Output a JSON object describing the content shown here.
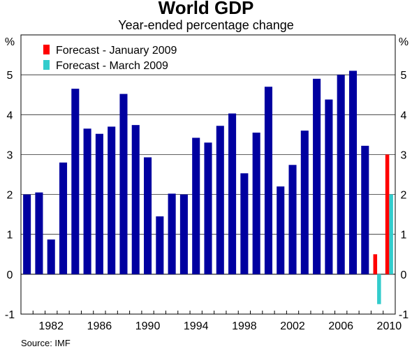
{
  "chart_data": {
    "type": "bar",
    "title": "World GDP",
    "subtitle": "Year-ended percentage change",
    "ylabel_left": "%",
    "ylabel_right": "%",
    "ylim": [
      -1,
      6
    ],
    "yticks": [
      -1,
      0,
      1,
      2,
      3,
      4,
      5
    ],
    "xrange": [
      1980,
      2011
    ],
    "xtick_labels": [
      "1982",
      "1986",
      "1990",
      "1994",
      "1998",
      "2002",
      "2006",
      "2010"
    ],
    "grid": true,
    "legend_position": "top-left",
    "source": "Source: IMF",
    "series": [
      {
        "name": "",
        "color": "#0000A0",
        "x": [
          1980,
          1981,
          1982,
          1983,
          1984,
          1985,
          1986,
          1987,
          1988,
          1989,
          1990,
          1991,
          1992,
          1993,
          1994,
          1995,
          1996,
          1997,
          1998,
          1999,
          2000,
          2001,
          2002,
          2003,
          2004,
          2005,
          2006,
          2007,
          2008
        ],
        "values": [
          2.0,
          2.05,
          0.87,
          2.8,
          4.65,
          3.65,
          3.52,
          3.7,
          4.52,
          3.74,
          2.93,
          1.45,
          2.02,
          2.0,
          3.42,
          3.3,
          3.72,
          4.03,
          2.53,
          3.55,
          4.7,
          2.2,
          2.74,
          3.6,
          4.9,
          4.38,
          5.0,
          5.1,
          3.22
        ]
      },
      {
        "name": "Forecast - January 2009",
        "color": "#FF0000",
        "x": [
          2009,
          2010
        ],
        "values": [
          0.5,
          3.0
        ]
      },
      {
        "name": "Forecast - March 2009",
        "color": "#33CCCC",
        "x": [
          2009,
          2010
        ],
        "values": [
          -0.75,
          2.0
        ]
      }
    ]
  }
}
